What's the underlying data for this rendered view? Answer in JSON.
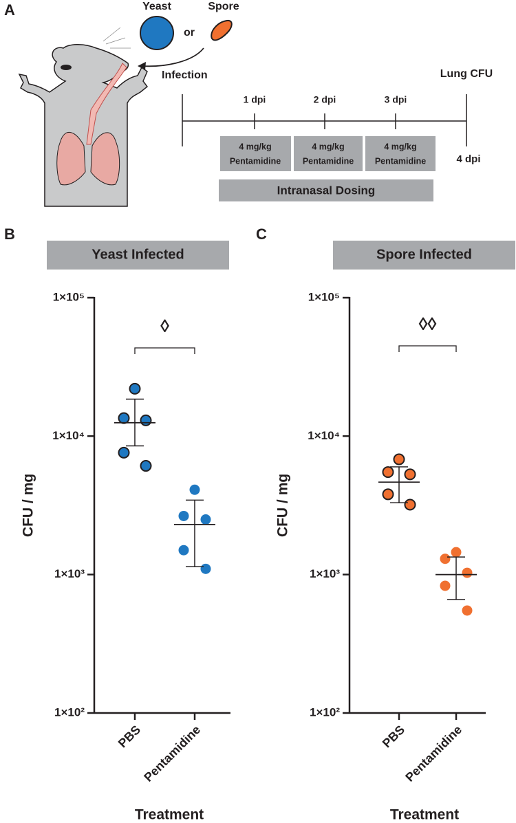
{
  "diagram": {
    "panel": "A",
    "pathogens": [
      "Yeast",
      "Spore"
    ],
    "or": "or",
    "infection": "Infection",
    "endpoint": "Lung CFU",
    "days": [
      "1 dpi",
      "2 dpi",
      "3 dpi",
      "4 dpi"
    ],
    "doses": [
      [
        "4 mg/kg",
        "Pentamidine"
      ],
      [
        "4 mg/kg",
        "Pentamidine"
      ],
      [
        "4 mg/kg",
        "Pentamidine"
      ]
    ],
    "dosing": "Intranasal Dosing"
  },
  "chart_data": [
    {
      "type": "scatter",
      "panel": "B",
      "title": "Yeast Infected",
      "ylabel": "CFU / mg",
      "xlabel": "Treatment",
      "log_scale": true,
      "ylim": [
        100,
        100000
      ],
      "yticks": [
        {
          "value": 100000,
          "label": "1×10⁵"
        },
        {
          "value": 10000,
          "label": "1×10⁴"
        },
        {
          "value": 1000,
          "label": "1×10³"
        },
        {
          "value": 100,
          "label": "1×10²"
        }
      ],
      "categories": [
        "PBS",
        "Pentamidine"
      ],
      "color": "#1f78c1",
      "annotation": "◊",
      "groups": [
        {
          "values": [
            22000,
            13500,
            13000,
            7600,
            6100
          ],
          "mean": 12500,
          "lower": 8500,
          "upper": 18500,
          "edge": true
        },
        {
          "values": [
            4100,
            2650,
            2500,
            1500,
            1100
          ],
          "mean": 2300,
          "lower": 1140,
          "upper": 3450,
          "edge": false
        }
      ]
    },
    {
      "type": "scatter",
      "panel": "C",
      "title": "Spore Infected",
      "ylabel": "CFU / mg",
      "xlabel": "Treatment",
      "log_scale": true,
      "ylim": [
        100,
        100000
      ],
      "yticks": [
        {
          "value": 100000,
          "label": "1×10⁵"
        },
        {
          "value": 10000,
          "label": "1×10⁴"
        },
        {
          "value": 1000,
          "label": "1×10³"
        },
        {
          "value": 100,
          "label": "1×10²"
        }
      ],
      "categories": [
        "PBS",
        "Pentamidine"
      ],
      "color": "#f07030",
      "annotation": "◊◊",
      "groups": [
        {
          "values": [
            6800,
            5500,
            5300,
            3800,
            3200
          ],
          "mean": 4650,
          "lower": 3300,
          "upper": 6000,
          "edge": true
        },
        {
          "values": [
            1450,
            1300,
            1030,
            830,
            550
          ],
          "mean": 1000,
          "lower": 660,
          "upper": 1340,
          "edge": false
        }
      ]
    }
  ]
}
